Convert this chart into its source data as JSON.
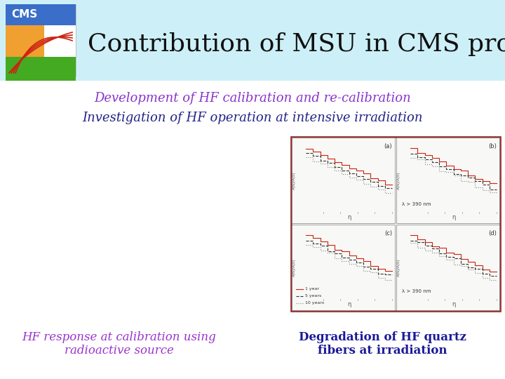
{
  "title": "Contribution of MSU in CMS project",
  "subtitle1": "Development of HF calibration and re-calibration",
  "subtitle2": "Investigation of HF operation at intensive irradiation",
  "caption_left": "HF response at calibration using\nradioactive source",
  "caption_right": "Degradation of HF quartz\nfibers at irradiation",
  "bg_color": "#ffffff",
  "header_bg": "#cdf0f8",
  "title_color": "#111111",
  "subtitle_color": "#8833cc",
  "subtitle2_color": "#222288",
  "caption_color_left": "#9933cc",
  "caption_color_right": "#1a1a99",
  "plot_border_color": "#993333",
  "logo_blue": "#3a6ec8",
  "logo_orange": "#f0a030",
  "logo_green": "#44aa22",
  "logo_white": "#e0e8d0"
}
